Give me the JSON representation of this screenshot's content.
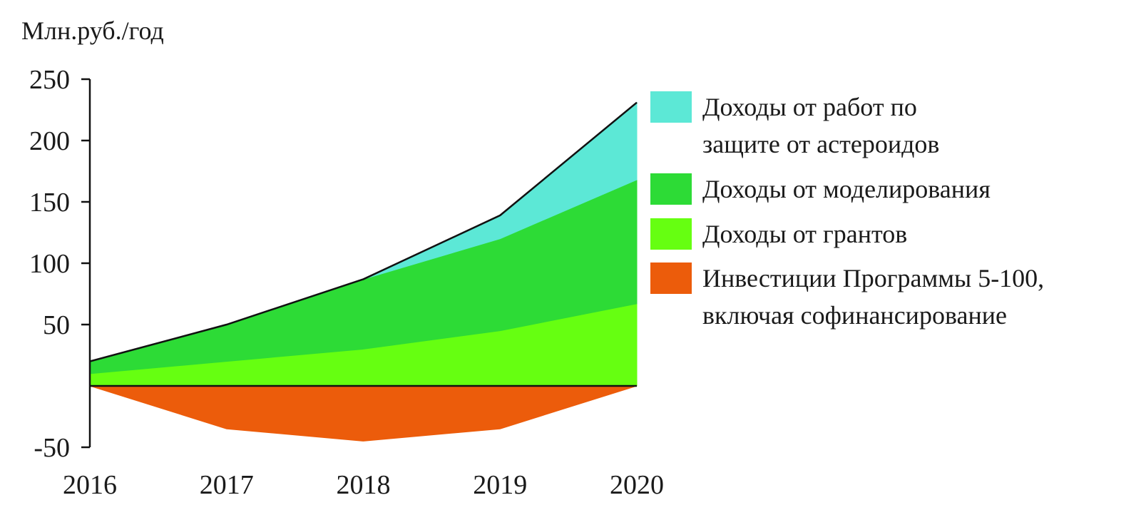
{
  "chart_data": {
    "type": "area",
    "stacked": true,
    "ylabel": "Млн.руб./год",
    "x": [
      2016,
      2017,
      2018,
      2019,
      2020
    ],
    "ylim": [
      -50,
      250
    ],
    "yticks": [
      -50,
      50,
      100,
      150,
      200,
      250
    ],
    "grid": false,
    "legend_position": "right",
    "series": [
      {
        "name": "Доходы от грантов",
        "color": "#66ff11",
        "values": [
          10,
          20,
          30,
          45,
          67
        ]
      },
      {
        "name": "Доходы от моделирования",
        "color": "#2ddb36",
        "values": [
          10,
          30,
          57,
          75,
          101
        ]
      },
      {
        "name": "Доходы от работ по защите от астероидов",
        "color": "#5ce8d6",
        "values": [
          0,
          0,
          0,
          19,
          63
        ]
      },
      {
        "name": "Инвестиции Программы 5-100, включая софинансирование",
        "color": "#ec5c0b",
        "values": [
          0,
          -35,
          -45,
          -35,
          0
        ]
      }
    ],
    "legend": [
      {
        "series": 2,
        "lines": [
          "Доходы от работ по",
          "защите от астероидов"
        ]
      },
      {
        "series": 1,
        "lines": [
          "Доходы от моделирования"
        ]
      },
      {
        "series": 0,
        "lines": [
          "Доходы от грантов"
        ]
      },
      {
        "series": 3,
        "lines": [
          "Инвестиции Программы 5-100,",
          "включая софинансирование"
        ]
      }
    ]
  }
}
